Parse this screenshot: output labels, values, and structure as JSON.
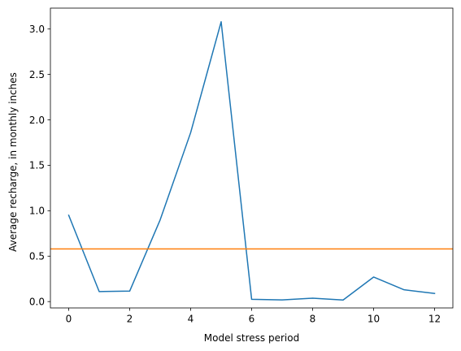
{
  "chart_data": {
    "type": "line",
    "title": "",
    "xlabel": "Model stress period",
    "ylabel": "Average recharge, in monthly inches",
    "xlim": [
      -0.6,
      12.6
    ],
    "ylim": [
      -0.07,
      3.23
    ],
    "x_ticks": [
      0,
      2,
      4,
      6,
      8,
      10,
      12
    ],
    "x_tick_labels": [
      "0",
      "2",
      "4",
      "6",
      "8",
      "10",
      "12"
    ],
    "y_ticks": [
      0.0,
      0.5,
      1.0,
      1.5,
      2.0,
      2.5,
      3.0
    ],
    "y_tick_labels": [
      "0.0",
      "0.5",
      "1.0",
      "1.5",
      "2.0",
      "2.5",
      "3.0"
    ],
    "grid": false,
    "legend": "none",
    "series": [
      {
        "color": "#1f77b4",
        "x": [
          0,
          1,
          2,
          3,
          4,
          5,
          6,
          7,
          8,
          9,
          10,
          11,
          12
        ],
        "values": [
          0.95,
          0.11,
          0.115,
          0.9,
          1.86,
          3.08,
          0.025,
          0.018,
          0.037,
          0.017,
          0.27,
          0.13,
          0.09
        ]
      }
    ],
    "hlines": [
      {
        "y": 0.58,
        "color": "#ff7f0e"
      }
    ]
  }
}
